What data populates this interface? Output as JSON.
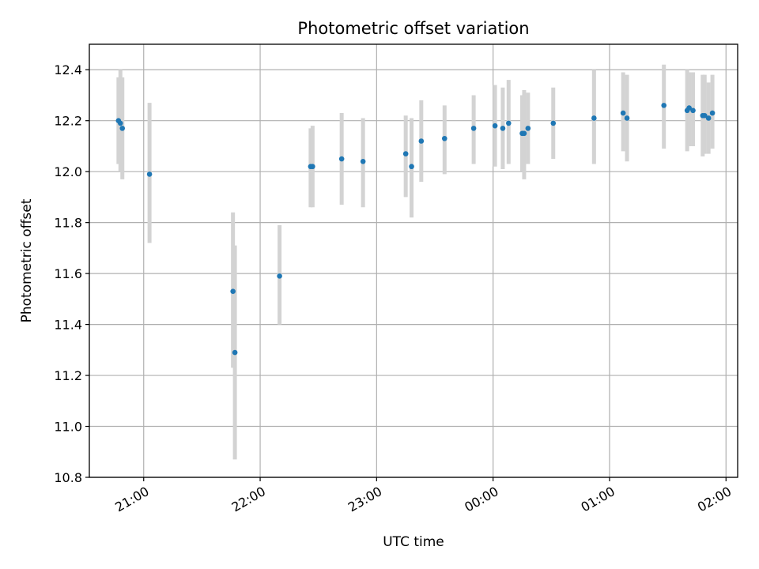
{
  "chart_data": {
    "type": "scatter",
    "title": "Photometric offset variation",
    "xlabel": "UTC time",
    "ylabel": "Photometric offset",
    "x_axis": {
      "kind": "time",
      "start": "20:32",
      "end": "02:06",
      "ticks": [
        "21:00",
        "22:00",
        "23:00",
        "00:00",
        "01:00",
        "02:00"
      ],
      "tick_label_rotation_deg": -30
    },
    "ylim": [
      10.8,
      12.5
    ],
    "yticks": [
      "10.8",
      "11.0",
      "11.2",
      "11.4",
      "11.6",
      "11.8",
      "12.0",
      "12.2",
      "12.4"
    ],
    "grid": true,
    "legend": "none",
    "colors": {
      "point": "#1f77b4",
      "errorbar": "#d3d3d3"
    },
    "points": [
      {
        "t": "20:47",
        "y": 12.2,
        "lo": 12.03,
        "hi": 12.37
      },
      {
        "t": "20:48",
        "y": 12.19,
        "lo": 12.0,
        "hi": 12.4
      },
      {
        "t": "20:49",
        "y": 12.17,
        "lo": 11.97,
        "hi": 12.37
      },
      {
        "t": "21:03",
        "y": 11.99,
        "lo": 11.72,
        "hi": 12.27
      },
      {
        "t": "21:46",
        "y": 11.53,
        "lo": 11.23,
        "hi": 11.84
      },
      {
        "t": "21:47",
        "y": 11.29,
        "lo": 10.87,
        "hi": 11.71
      },
      {
        "t": "22:10",
        "y": 11.59,
        "lo": 11.4,
        "hi": 11.79
      },
      {
        "t": "22:26",
        "y": 12.02,
        "lo": 11.86,
        "hi": 12.17
      },
      {
        "t": "22:27",
        "y": 12.02,
        "lo": 11.86,
        "hi": 12.18
      },
      {
        "t": "22:42",
        "y": 12.05,
        "lo": 11.87,
        "hi": 12.23
      },
      {
        "t": "22:53",
        "y": 12.04,
        "lo": 11.86,
        "hi": 12.21
      },
      {
        "t": "23:15",
        "y": 12.07,
        "lo": 11.9,
        "hi": 12.22
      },
      {
        "t": "23:18",
        "y": 12.02,
        "lo": 11.82,
        "hi": 12.21
      },
      {
        "t": "23:23",
        "y": 12.12,
        "lo": 11.96,
        "hi": 12.28
      },
      {
        "t": "23:35",
        "y": 12.13,
        "lo": 11.99,
        "hi": 12.26
      },
      {
        "t": "23:50",
        "y": 12.17,
        "lo": 12.03,
        "hi": 12.3
      },
      {
        "t": "00:01",
        "y": 12.18,
        "lo": 12.02,
        "hi": 12.34
      },
      {
        "t": "00:05",
        "y": 12.17,
        "lo": 12.01,
        "hi": 12.33
      },
      {
        "t": "00:08",
        "y": 12.19,
        "lo": 12.03,
        "hi": 12.36
      },
      {
        "t": "00:15",
        "y": 12.15,
        "lo": 12.0,
        "hi": 12.3
      },
      {
        "t": "00:16",
        "y": 12.15,
        "lo": 11.97,
        "hi": 12.32
      },
      {
        "t": "00:18",
        "y": 12.17,
        "lo": 12.03,
        "hi": 12.31
      },
      {
        "t": "00:31",
        "y": 12.19,
        "lo": 12.05,
        "hi": 12.33
      },
      {
        "t": "00:52",
        "y": 12.21,
        "lo": 12.03,
        "hi": 12.4
      },
      {
        "t": "01:07",
        "y": 12.23,
        "lo": 12.08,
        "hi": 12.39
      },
      {
        "t": "01:09",
        "y": 12.21,
        "lo": 12.04,
        "hi": 12.38
      },
      {
        "t": "01:28",
        "y": 12.26,
        "lo": 12.09,
        "hi": 12.42
      },
      {
        "t": "01:40",
        "y": 12.24,
        "lo": 12.08,
        "hi": 12.4
      },
      {
        "t": "01:41",
        "y": 12.25,
        "lo": 12.1,
        "hi": 12.39
      },
      {
        "t": "01:43",
        "y": 12.24,
        "lo": 12.1,
        "hi": 12.39
      },
      {
        "t": "01:48",
        "y": 12.22,
        "lo": 12.06,
        "hi": 12.38
      },
      {
        "t": "01:49",
        "y": 12.22,
        "lo": 12.07,
        "hi": 12.38
      },
      {
        "t": "01:51",
        "y": 12.21,
        "lo": 12.07,
        "hi": 12.35
      },
      {
        "t": "01:53",
        "y": 12.23,
        "lo": 12.09,
        "hi": 12.38
      }
    ]
  }
}
